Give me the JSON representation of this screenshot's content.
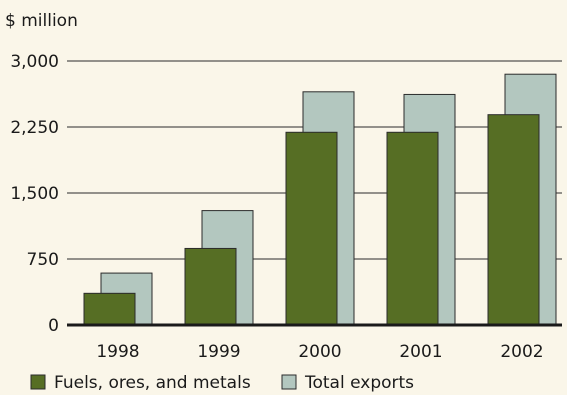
{
  "chart_data": {
    "type": "bar",
    "unit_label": "$ million",
    "categories": [
      "1998",
      "1999",
      "2000",
      "2001",
      "2002"
    ],
    "series": [
      {
        "name": "Total exports",
        "color": "#b3c7bf",
        "values": [
          590,
          1300,
          2650,
          2620,
          2850
        ]
      },
      {
        "name": "Fuels, ores, and metals",
        "color": "#566e24",
        "values": [
          360,
          870,
          2190,
          2190,
          2390
        ]
      }
    ],
    "ylim": [
      0,
      3000
    ],
    "yticks": [
      0,
      750,
      1500,
      2250,
      3000
    ],
    "ytick_labels": [
      "0",
      "750",
      "1,500",
      "2,250",
      "3,000"
    ],
    "grid": true,
    "legend_position": "bottom-left",
    "legend_order": [
      "Fuels, ores, and metals",
      "Total exports"
    ]
  }
}
